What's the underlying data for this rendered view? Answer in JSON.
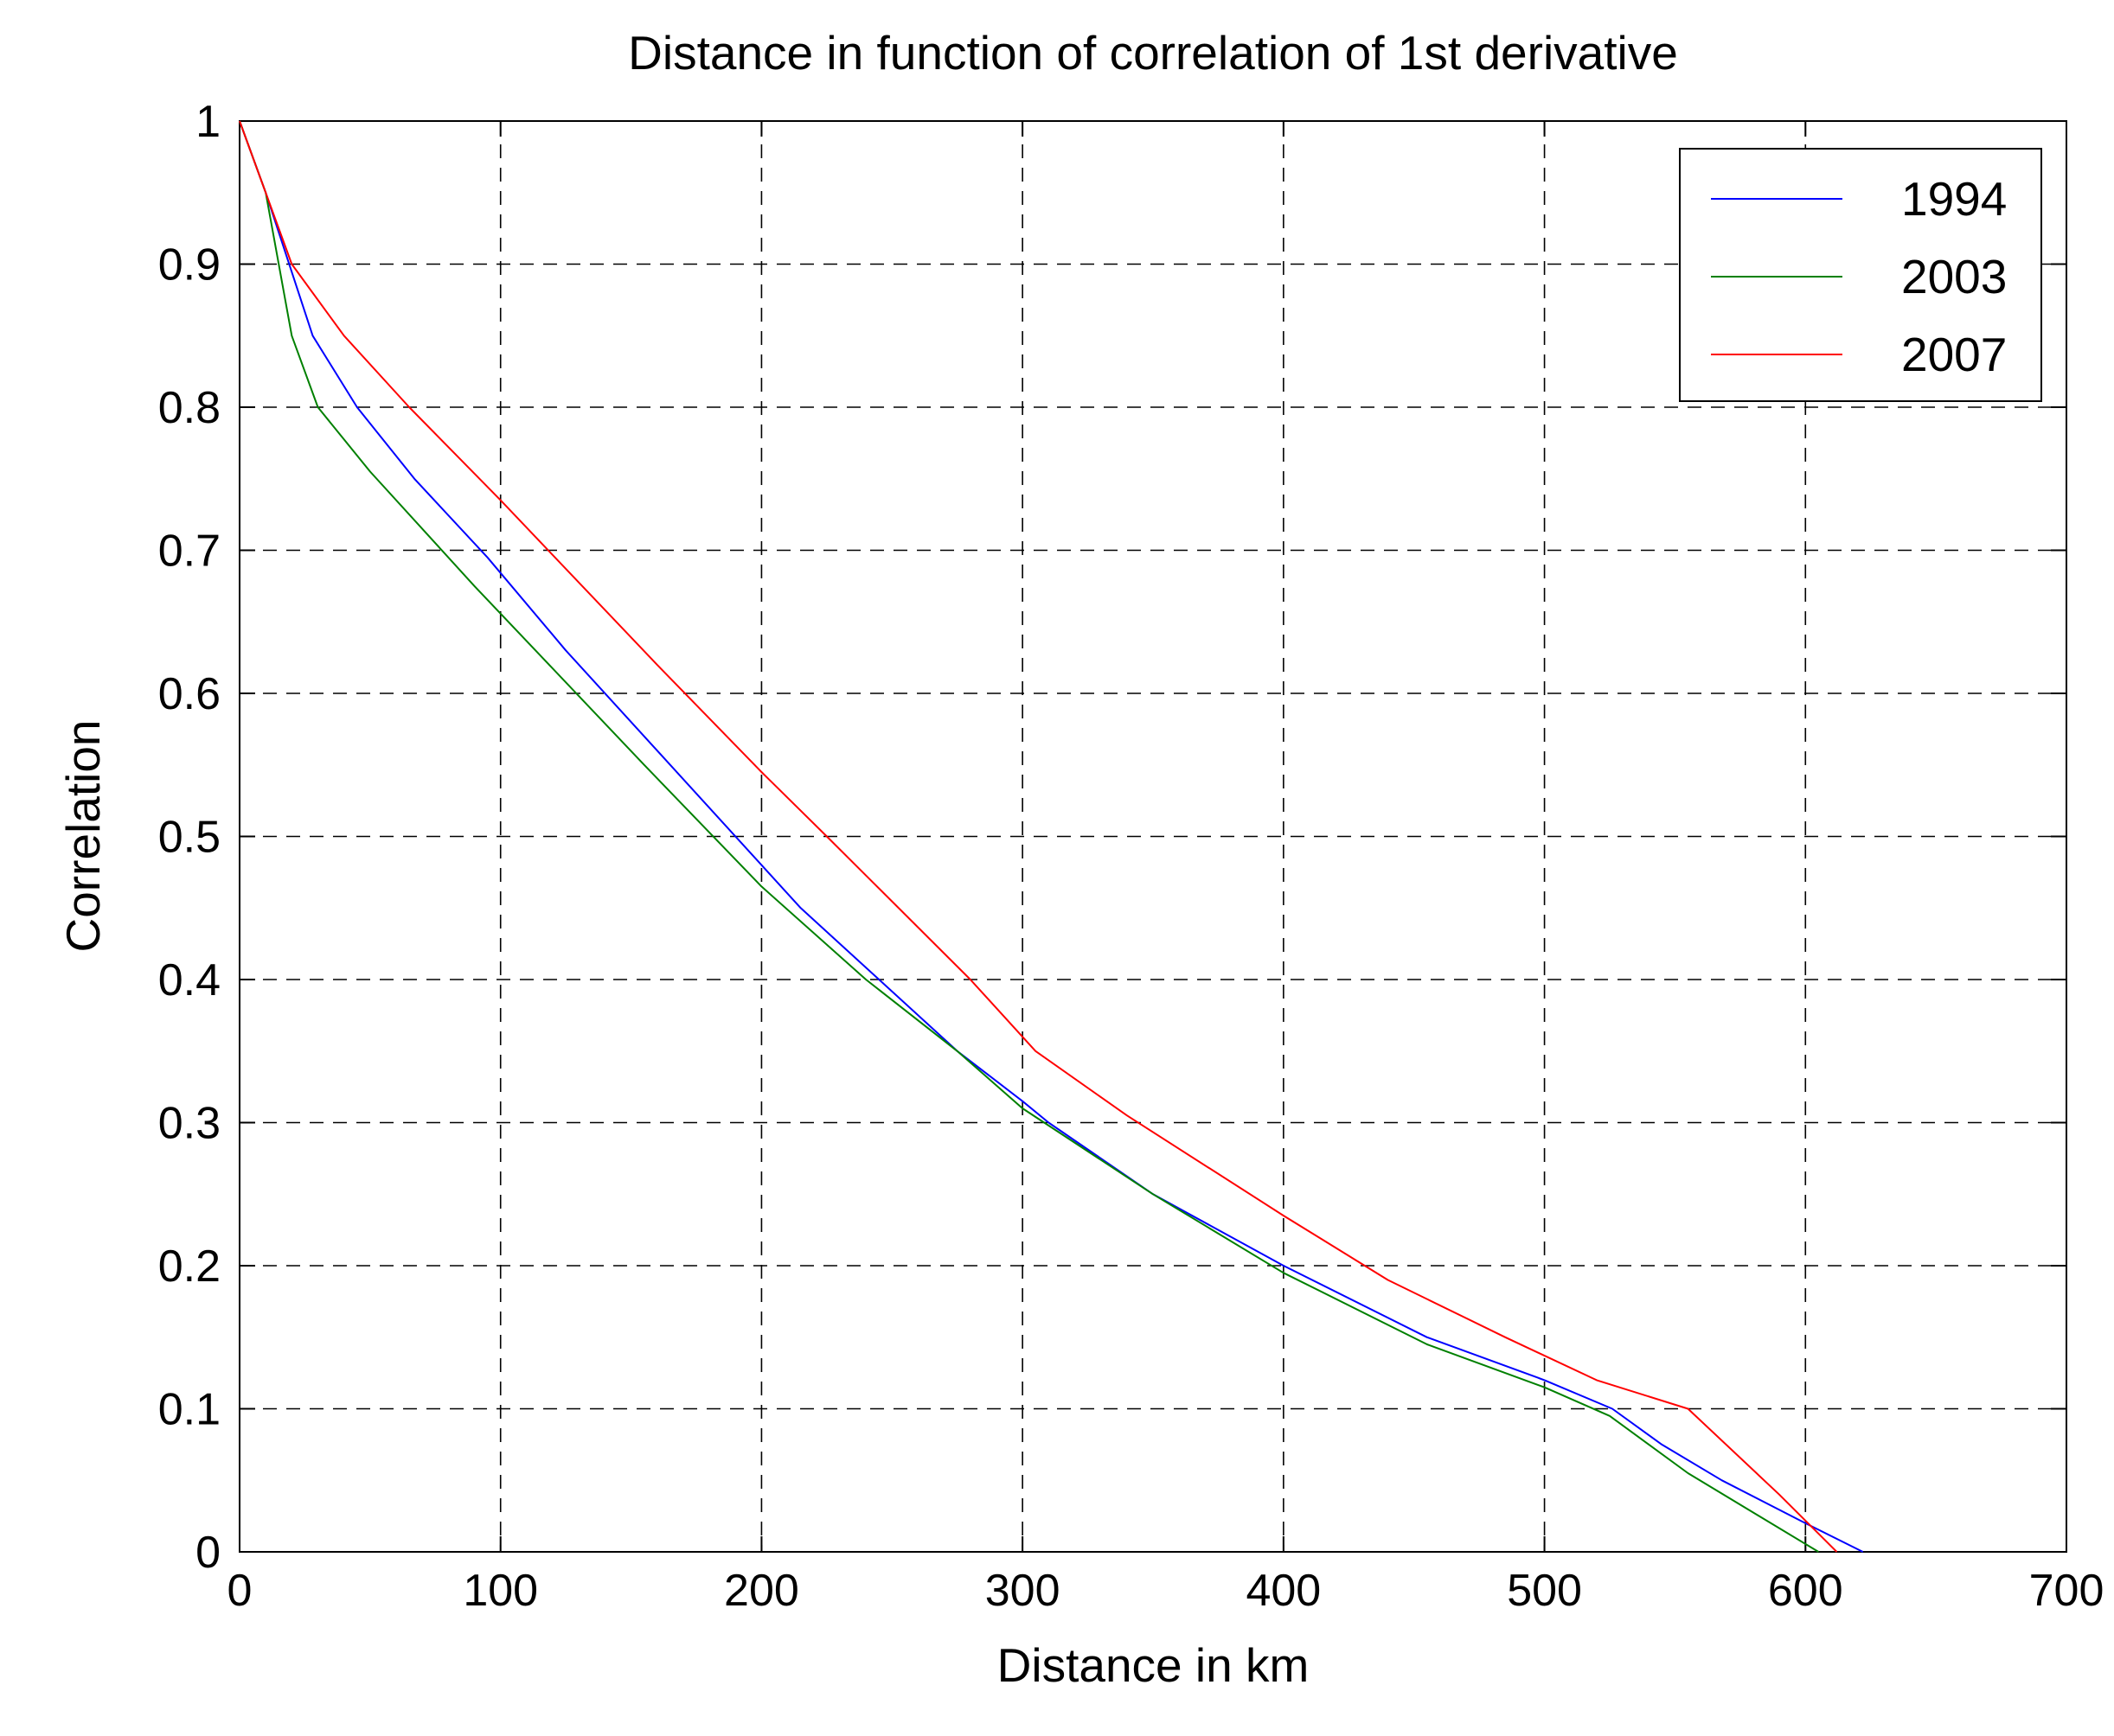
{
  "chart_data": {
    "type": "line",
    "title": "Distance in function of correlation of 1st derivative",
    "xlabel": "Distance in km",
    "ylabel": "Correlation",
    "xlim": [
      0,
      700
    ],
    "ylim": [
      0,
      1
    ],
    "x_ticks": [
      "0",
      "100",
      "200",
      "300",
      "400",
      "500",
      "600",
      "700"
    ],
    "y_ticks": [
      "0",
      "0.1",
      "0.2",
      "0.3",
      "0.4",
      "0.5",
      "0.6",
      "0.7",
      "0.8",
      "0.9",
      "1"
    ],
    "grid": true,
    "legend_position": "top-right",
    "series": [
      {
        "name": "1994",
        "color": "#0000ff",
        "x": [
          0,
          10,
          28,
          45,
          67,
          95,
          125,
          165,
          200,
          215,
          245,
          275,
          300,
          310,
          350,
          400,
          455,
          500,
          526,
          545,
          568,
          600,
          622
        ],
        "y": [
          1,
          0.95,
          0.85,
          0.8,
          0.75,
          0.695,
          0.63,
          0.55,
          0.48,
          0.45,
          0.4,
          0.35,
          0.315,
          0.3,
          0.25,
          0.2,
          0.15,
          0.12,
          0.1,
          0.075,
          0.05,
          0.02,
          0
        ]
      },
      {
        "name": "2003",
        "color": "#008000",
        "x": [
          0,
          10,
          20,
          30,
          50,
          90,
          155,
          200,
          240,
          275,
          300,
          350,
          400,
          455,
          500,
          525,
          555,
          605
        ],
        "y": [
          1,
          0.95,
          0.85,
          0.8,
          0.755,
          0.675,
          0.55,
          0.465,
          0.4,
          0.35,
          0.31,
          0.25,
          0.195,
          0.145,
          0.115,
          0.095,
          0.055,
          0
        ]
      },
      {
        "name": "2007",
        "color": "#ff0000",
        "x": [
          0,
          20,
          40,
          65,
          100,
          160,
          200,
          225,
          280,
          305,
          340,
          400,
          440,
          485,
          520,
          555,
          590,
          612
        ],
        "y": [
          1,
          0.9,
          0.85,
          0.8,
          0.735,
          0.62,
          0.545,
          0.5,
          0.4,
          0.35,
          0.305,
          0.235,
          0.19,
          0.15,
          0.12,
          0.1,
          0.04,
          0
        ]
      }
    ]
  }
}
